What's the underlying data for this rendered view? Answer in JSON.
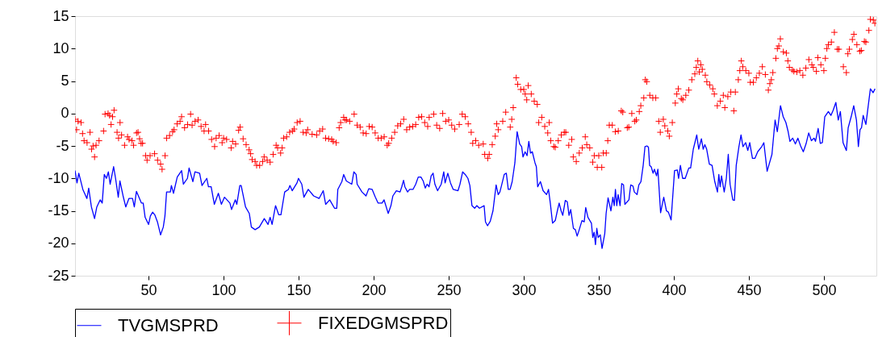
{
  "chart_data": {
    "type": "line",
    "xlim": [
      1,
      535
    ],
    "xticks": [
      50,
      100,
      150,
      200,
      250,
      300,
      350,
      400,
      450,
      500
    ],
    "ylim": [
      -25,
      15
    ],
    "yticks": [
      -25,
      -20,
      -15,
      -10,
      -5,
      0,
      5,
      10,
      15
    ],
    "legend": "bottom",
    "grid": false,
    "series": [
      {
        "name": "TVGMSPRD",
        "color": "#0000ff",
        "marker": "none",
        "x": [
          1,
          2.3,
          3.5,
          6.2,
          8.9,
          10.1,
          11.9,
          14.0,
          15.5,
          17.8,
          19.1,
          20.5,
          21.9,
          23.2,
          24.4,
          26.7,
          28.0,
          29.8,
          30.9,
          33.0,
          34.8,
          36.9,
          39.3,
          40.5,
          41.9,
          45.2,
          46.4,
          47.7,
          50.0,
          51.2,
          52.7,
          54.1,
          55.9,
          58.0,
          59.8,
          60.9,
          62.0,
          64.5,
          65.2,
          66.6,
          69.1,
          72.0,
          73.2,
          75.9,
          77.0,
          79.5,
          80.9,
          84.0,
          85.6,
          88.8,
          89.9,
          91.7,
          93.8,
          96.5,
          98.5,
          100.6,
          104.2,
          105.3,
          107.8,
          108.8,
          110.8,
          111.7,
          114.6,
          117.1,
          118.5,
          121.0,
          123.8,
          127.1,
          129.6,
          131.0,
          132.3,
          134.6,
          136.7,
          138.2,
          140.7,
          143.2,
          144.2,
          145.7,
          148.9,
          149.9,
          152.1,
          153.5,
          156.4,
          160.0,
          163.6,
          166.4,
          168.0,
          170.7,
          173.9,
          175.4,
          176.1,
          178.8,
          180.0,
          181.8,
          185.4,
          186.8,
          188.3,
          189.0,
          192.2,
          194.9,
          196.7,
          199.0,
          201.1,
          202.9,
          205.6,
          206.9,
          209.7,
          211.5,
          212.8,
          215.1,
          217.6,
          218.7,
          219.9,
          220.8,
          222.6,
          224.0,
          226.2,
          228.0,
          229.7,
          231.5,
          233.0,
          234.4,
          235.6,
          236.9,
          238.3,
          239.6,
          240.8,
          242.6,
          245.0,
          246.7,
          247.6,
          249.4,
          251.2,
          253.0,
          256.2,
          257.5,
          259.3,
          261.0,
          262.8,
          264.1,
          265.5,
          267.3,
          268.7,
          270.5,
          273.6,
          274.5,
          275.9,
          277.7,
          279.5,
          281.6,
          283.0,
          284.1,
          285.2,
          287.0,
          288.4,
          289.7,
          290.9,
          292.3,
          294.1,
          295.6,
          297.3,
          298.6,
          299.5,
          300.9,
          302.2,
          303.4,
          304.5,
          305.7,
          307.5,
          308.4,
          309.3,
          311.1,
          312.9,
          315.2,
          316.5,
          317.7,
          319.2,
          321.0,
          322.4,
          323.6,
          324.9,
          326.0,
          327.7,
          329.0,
          330.2,
          331.3,
          333.1,
          334.4,
          335.6,
          337.0,
          338.8,
          340.3,
          341.3,
          342.8,
          345.1,
          346.0,
          346.9,
          347.8,
          348.7,
          349.6,
          351.0,
          352.2,
          354.0,
          354.9,
          356.2,
          358.1,
          359.4,
          360.3,
          361.1,
          362.0,
          362.9,
          364.2,
          365.3,
          366.5,
          367.4,
          370.1,
          371.3,
          372.8,
          373.7,
          375.5,
          376.7,
          378.1,
          379.6,
          380.8,
          382.1,
          383.1,
          383.9,
          384.9,
          386.2,
          387.1,
          388.5,
          389.4,
          391.2,
          393.3,
          395.1,
          396.4,
          398.2,
          400.5,
          402.3,
          403.2,
          404.4,
          405.9,
          407.6,
          410.0,
          411.2,
          413.0,
          415.3,
          416.6,
          418.4,
          419.6,
          420.7,
          421.9,
          423.7,
          425.5,
          427.3,
          429.1,
          430.0,
          430.9,
          431.8,
          433.6,
          435.0,
          436.3,
          437.5,
          439.3,
          440.4,
          441.6,
          443.4,
          444.8,
          446.1,
          447.9,
          449.3,
          450.6,
          452.4,
          454.1,
          455.9,
          458.6,
          460.0,
          462.2,
          465.4,
          467.5,
          469.0,
          471.1,
          472.9,
          474.7,
          476.1,
          477.4,
          479.2,
          481.0,
          482.7,
          484.5,
          486.3,
          488.1,
          489.9,
          491.7,
          493.5,
          494.4,
          496.2,
          497.6,
          499.0,
          500.6,
          503.0,
          504.7,
          506.2,
          508.0,
          509.6,
          511.0,
          512.8,
          515.0,
          516.2,
          518.2,
          519.9,
          521.7,
          523.0,
          524.1,
          525.1,
          526.2,
          528.0,
          531.0,
          532.8,
          534.1
        ],
        "values": [
          -8.8,
          -10.7,
          -9.2,
          -11.7,
          -13.1,
          -11.5,
          -14.4,
          -16.2,
          -14.4,
          -13.3,
          -13.8,
          -9.4,
          -10.0,
          -9.0,
          -10.9,
          -8.2,
          -10.0,
          -12.9,
          -10.4,
          -12.7,
          -14.4,
          -13.1,
          -13.1,
          -14.4,
          -12.0,
          -13.8,
          -13.8,
          -16.0,
          -17.1,
          -15.8,
          -15.2,
          -15.6,
          -16.7,
          -18.7,
          -17.5,
          -15.8,
          -12.1,
          -12.1,
          -11.1,
          -12.3,
          -9.8,
          -8.8,
          -10.9,
          -10.0,
          -8.4,
          -10.5,
          -9.0,
          -9.2,
          -11.1,
          -10.0,
          -11.3,
          -11.3,
          -14.0,
          -12.3,
          -14.0,
          -12.9,
          -13.8,
          -14.8,
          -13.3,
          -14.0,
          -11.1,
          -11.1,
          -14.4,
          -15.4,
          -17.5,
          -17.9,
          -17.5,
          -16.2,
          -17.1,
          -16.0,
          -17.1,
          -14.2,
          -15.6,
          -15.6,
          -12.1,
          -11.7,
          -11.1,
          -11.9,
          -10.7,
          -10.0,
          -10.9,
          -12.9,
          -11.7,
          -12.7,
          -13.1,
          -11.9,
          -14.0,
          -13.3,
          -14.6,
          -14.6,
          -11.7,
          -10.5,
          -9.4,
          -10.4,
          -10.9,
          -9.0,
          -9.4,
          -10.9,
          -12.1,
          -12.7,
          -11.6,
          -11.7,
          -12.9,
          -13.8,
          -13.8,
          -13.3,
          -15.4,
          -14.2,
          -12.7,
          -11.9,
          -12.1,
          -11.3,
          -10.3,
          -11.3,
          -12.1,
          -11.7,
          -11.7,
          -10.9,
          -9.8,
          -9.8,
          -10.4,
          -11.5,
          -10.9,
          -11.3,
          -9.6,
          -9.2,
          -10.9,
          -11.9,
          -10.9,
          -9.0,
          -10.7,
          -9.2,
          -10.7,
          -11.7,
          -11.9,
          -10.9,
          -9.0,
          -9.4,
          -10.0,
          -11.1,
          -14.2,
          -14.6,
          -14.2,
          -14.6,
          -14.2,
          -16.7,
          -17.3,
          -16.6,
          -15.0,
          -11.0,
          -12.5,
          -12.1,
          -11.1,
          -9.4,
          -9.2,
          -11.7,
          -11.7,
          -10.5,
          -7.6,
          -2.8,
          -4.7,
          -5.1,
          -6.7,
          -5.9,
          -6.5,
          -4.3,
          -6.1,
          -5.9,
          -7.6,
          -8.2,
          -11.3,
          -10.5,
          -11.9,
          -12.5,
          -11.7,
          -13.8,
          -16.9,
          -16.5,
          -15.0,
          -13.8,
          -15.0,
          -15.7,
          -13.4,
          -13.6,
          -15.7,
          -14.8,
          -17.7,
          -17.9,
          -18.9,
          -17.9,
          -16.5,
          -16.7,
          -14.5,
          -16.0,
          -16.9,
          -19.1,
          -18.3,
          -20.2,
          -17.7,
          -19.1,
          -18.7,
          -20.8,
          -18.5,
          -15.4,
          -13.0,
          -15.0,
          -12.9,
          -14.2,
          -11.7,
          -14.2,
          -12.5,
          -14.2,
          -10.8,
          -11.0,
          -14.0,
          -13.3,
          -11.0,
          -11.2,
          -12.1,
          -12.5,
          -11.0,
          -10.5,
          -8.0,
          -5.1,
          -5.0,
          -5.2,
          -8.0,
          -8.2,
          -9.2,
          -8.6,
          -9.6,
          -8.6,
          -15.3,
          -12.9,
          -15.0,
          -15.2,
          -16.4,
          -8.8,
          -8.7,
          -10.0,
          -8.0,
          -10.0,
          -10.0,
          -8.4,
          -8.4,
          -5.5,
          -3.3,
          -5.5,
          -3.9,
          -5.5,
          -4.8,
          -5.5,
          -7.8,
          -8.0,
          -10.5,
          -12.1,
          -9.4,
          -11.3,
          -9.6,
          -12.1,
          -10.0,
          -6.3,
          -10.9,
          -13.3,
          -13.4,
          -8.0,
          -5.1,
          -3.3,
          -5.1,
          -4.5,
          -5.7,
          -4.5,
          -6.9,
          -6.9,
          -5.9,
          -5.1,
          -4.5,
          -8.9,
          -6.3,
          -1.0,
          -2.8,
          1.2,
          -0.5,
          -1.4,
          -2.7,
          -4.3,
          -3.8,
          -4.7,
          -3.8,
          -5.0,
          -5.9,
          -4.7,
          -3.0,
          -4.2,
          -3.8,
          -4.3,
          -2.3,
          -4.6,
          -4.5,
          -0.5,
          0.3,
          -0.3,
          0.5,
          1.7,
          -1.0,
          0.3,
          -4.5,
          -5.7,
          -2.2,
          -0.5,
          1.2,
          -1.0,
          -5.1,
          -2.5,
          -2.2,
          -0.3,
          -1.7,
          3.8,
          3.2,
          3.8
        ]
      },
      {
        "name": "FIXEDGMSPRD",
        "color": "#ff0000",
        "type": "scatter",
        "marker": "cross",
        "x": [
          1,
          2,
          3,
          5,
          6,
          7,
          9,
          11,
          12,
          13,
          14,
          15,
          17,
          20,
          21,
          23,
          24,
          25,
          26,
          27,
          29,
          30,
          31,
          32,
          34,
          36,
          37,
          39,
          40,
          42,
          43,
          44,
          45,
          46,
          48,
          49,
          51,
          54,
          56,
          58,
          59,
          61,
          62,
          64,
          66,
          67,
          69,
          71,
          72,
          74,
          76,
          78,
          79,
          81,
          83,
          85,
          87,
          88,
          90,
          92,
          94,
          95,
          97,
          99,
          100,
          102,
          105,
          106,
          108,
          110,
          111,
          113,
          115,
          117,
          118,
          119,
          121,
          122,
          124,
          126,
          127,
          129,
          131,
          133,
          135,
          136,
          138,
          139,
          140,
          142,
          144,
          146,
          147,
          149,
          151,
          153,
          155,
          156,
          159,
          162,
          164,
          166,
          168,
          170,
          172,
          173,
          175,
          177,
          178,
          180,
          181,
          182,
          184,
          187,
          189,
          191,
          193,
          195,
          197,
          199,
          201,
          203,
          205,
          207,
          209,
          210,
          212,
          214,
          216,
          218,
          220,
          222,
          224,
          226,
          228,
          230,
          232,
          234,
          236,
          237,
          240,
          242,
          244,
          246,
          248,
          250,
          252,
          254,
          257,
          259,
          261,
          263,
          265,
          266,
          268,
          270,
          273,
          274,
          276,
          277,
          279,
          281,
          282,
          283,
          286,
          288,
          291,
          292,
          293,
          295,
          296,
          298,
          300,
          301,
          302,
          303,
          305,
          307,
          309,
          310,
          312,
          314,
          316,
          317,
          318,
          320,
          321,
          323,
          325,
          327,
          328,
          330,
          332,
          333,
          335,
          337,
          339,
          341,
          342,
          344,
          346,
          347,
          349,
          350,
          352,
          353,
          355,
          356,
          357,
          359,
          361,
          363,
          365,
          366,
          369,
          370,
          372,
          374,
          375,
          377,
          378,
          380,
          381,
          382,
          384,
          386,
          388,
          390,
          391,
          393,
          394,
          396,
          397,
          399,
          401,
          402,
          403,
          405,
          406,
          408,
          410,
          412,
          414,
          415,
          416,
          417,
          418,
          419,
          421,
          422,
          424,
          426,
          427,
          429,
          431,
          433,
          434,
          436,
          438,
          440,
          441,
          443,
          444,
          445,
          446,
          448,
          450,
          451,
          453,
          455,
          457,
          459,
          461,
          463,
          464,
          465,
          466,
          468,
          469,
          470,
          471,
          473,
          475,
          476,
          477,
          479,
          480,
          482,
          484,
          486,
          488,
          490,
          492,
          493,
          495,
          496,
          498,
          500,
          501,
          502,
          503,
          505,
          507,
          509,
          510,
          513,
          515,
          516,
          517,
          519,
          520,
          522,
          524,
          525,
          527,
          528,
          530,
          531,
          533,
          534
        ],
        "values": [
          -0.9,
          -2.5,
          -1.2,
          -1.4,
          -3.1,
          -4.2,
          -4.5,
          -2.9,
          -5.5,
          -5.0,
          -6.7,
          -4.9,
          -4.2,
          -2.7,
          -0.1,
          0.0,
          -0.3,
          -1.7,
          -0.5,
          0.5,
          -2.9,
          -3.8,
          -1.4,
          -3.3,
          -4.9,
          -3.6,
          -4.0,
          -4.2,
          -4.9,
          -3.0,
          -2.9,
          -3.9,
          -4.6,
          -4.6,
          -6.5,
          -7.2,
          -6.5,
          -6.2,
          -7.2,
          -7.8,
          -8.6,
          -6.5,
          -3.8,
          -3.4,
          -2.8,
          -2.5,
          -1.6,
          -1.2,
          -0.5,
          -2.2,
          -1.7,
          -0.1,
          -1.8,
          -1.2,
          -1.0,
          -2.0,
          -2.7,
          -1.7,
          -2.7,
          -4.0,
          -5.1,
          -3.8,
          -3.4,
          -4.5,
          -3.8,
          -4.0,
          -5.3,
          -4.3,
          -4.7,
          -2.6,
          -2.1,
          -3.9,
          -4.8,
          -5.6,
          -6.2,
          -7.1,
          -7.4,
          -8.0,
          -8.0,
          -7.4,
          -6.7,
          -7.2,
          -7.5,
          -6.3,
          -4.9,
          -5.3,
          -6.1,
          -5.3,
          -3.8,
          -3.6,
          -2.9,
          -2.7,
          -2.4,
          -1.4,
          -1.2,
          -2.9,
          -3.0,
          -2.5,
          -3.2,
          -3.3,
          -2.7,
          -2.4,
          -3.8,
          -3.9,
          -4.0,
          -4.3,
          -4.5,
          -2.2,
          -1.4,
          -0.6,
          -1.0,
          -1.0,
          -1.2,
          -0.1,
          -1.8,
          -2.1,
          -3.0,
          -3.1,
          -2.0,
          -2.1,
          -3.0,
          -3.8,
          -3.8,
          -3.6,
          -4.9,
          -4.6,
          -3.8,
          -2.9,
          -1.9,
          -1.6,
          -0.9,
          -2.5,
          -2.1,
          -2.0,
          -1.7,
          -0.6,
          -0.5,
          -1.4,
          -2.0,
          -0.6,
          -0.1,
          -1.8,
          -2.3,
          0.0,
          -1.2,
          -1.0,
          -1.8,
          -2.4,
          -1.7,
          -0.1,
          -0.5,
          -1.6,
          -2.9,
          -4.6,
          -4.2,
          -4.9,
          -4.7,
          -6.3,
          -6.9,
          -6.3,
          -4.8,
          -3.5,
          -1.6,
          -2.5,
          -1.2,
          0.2,
          -2.1,
          -0.9,
          0.9,
          5.5,
          4.5,
          3.7,
          3.7,
          3.0,
          2.1,
          4.3,
          3.0,
          1.9,
          1.4,
          -1.4,
          -0.6,
          -2.0,
          -3.0,
          -1.4,
          -4.2,
          -5.1,
          -5.2,
          -4.2,
          -3.3,
          -2.9,
          -2.9,
          -4.9,
          -4.0,
          -6.7,
          -7.4,
          -6.1,
          -5.3,
          -3.6,
          -4.8,
          -5.3,
          -7.5,
          -6.5,
          -8.3,
          -6.5,
          -8.3,
          -6.1,
          -6.1,
          -4.2,
          -1.8,
          -1.8,
          -2.8,
          -2.7,
          0.4,
          0.2,
          -2.2,
          -2.1,
          0.0,
          -1.2,
          -1.0,
          0.3,
          1.2,
          2.4,
          5.2,
          4.9,
          2.8,
          2.4,
          2.4,
          -1.2,
          -2.9,
          -0.9,
          -1.9,
          -2.7,
          -3.5,
          -1.4,
          1.6,
          3.0,
          3.8,
          2.3,
          2.1,
          2.8,
          3.6,
          5.2,
          6.1,
          7.1,
          8.1,
          6.4,
          7.5,
          6.8,
          5.9,
          4.9,
          4.4,
          3.8,
          3.0,
          1.2,
          1.9,
          2.8,
          0.9,
          2.6,
          3.3,
          0.4,
          3.3,
          5.2,
          6.6,
          8.1,
          7.2,
          6.6,
          6.2,
          4.8,
          4.8,
          5.5,
          6.2,
          7.2,
          6.0,
          3.6,
          4.6,
          5.2,
          6.3,
          8.5,
          10.0,
          10.4,
          11.5,
          9.5,
          9.3,
          8.1,
          7.1,
          6.7,
          6.5,
          6.4,
          6.6,
          5.9,
          7.0,
          8.3,
          7.5,
          7.1,
          6.5,
          8.6,
          7.5,
          6.6,
          8.5,
          10.0,
          10.6,
          11.0,
          12.5,
          9.9,
          9.9,
          7.2,
          6.3,
          9.2,
          9.9,
          11.4,
          12.2,
          10.6,
          9.6,
          9.7,
          11.1,
          11.0,
          12.8,
          14.5,
          14.4,
          13.9
        ]
      }
    ]
  }
}
